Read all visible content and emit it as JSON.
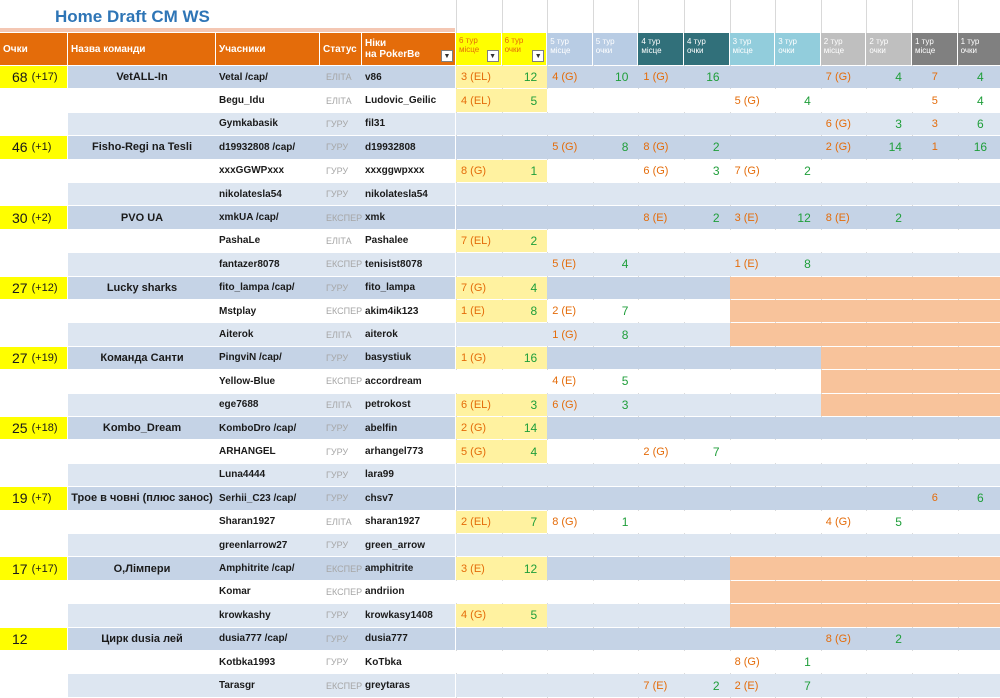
{
  "title": "Home Draft CM WS",
  "headers": {
    "points": "Очки",
    "team": "Назва команди",
    "members": "Учасники",
    "status": "Статус",
    "nick_line1": "Ніки",
    "nick_line2": "на PokerBe",
    "tours": [
      {
        "place": "6 тур місце",
        "points": "6 тур очки",
        "color": "#ffff00"
      },
      {
        "place": "5 тур місце",
        "points": "5 тур очки",
        "color": "#b8cce4"
      },
      {
        "place": "4 тур місце",
        "points": "4 тур очки",
        "color": "#31707a"
      },
      {
        "place": "3 тур місце",
        "points": "3 тур очки",
        "color": "#92cddc"
      },
      {
        "place": "2 тур місце",
        "points": "2 тур очки",
        "color": "#bfbfbf"
      },
      {
        "place": "1 тур місце",
        "points": "1 тур очки",
        "color": "#808080"
      }
    ]
  },
  "colors": {
    "band_dark": "#c5d3e6",
    "band_light": "#dde6f1",
    "band_white": "#ffffff",
    "tour6_fill": "#fff2a0",
    "peach": "#f8c39b",
    "place_text": "#e46c0a",
    "points_text": "#1f9e3a"
  },
  "rows": [
    {
      "team_points": "68",
      "team_delta": "(+17)",
      "team": "VetALL-In",
      "member": "Vetal /cap/",
      "status": "ЕЛІТА",
      "nick": "v86",
      "band": "dark",
      "tours": [
        [
          "3 (EL)",
          "12"
        ],
        [
          "4 (G)",
          "10"
        ],
        [
          "1 (G)",
          "16"
        ],
        [
          "",
          ""
        ],
        [
          "7 (G)",
          "4"
        ],
        [
          "7",
          "4"
        ]
      ]
    },
    {
      "member": "Begu_Idu",
      "status": "ЕЛІТА",
      "nick": "Ludovic_Geilic",
      "band": "white",
      "tours": [
        [
          "4 (EL)",
          "5"
        ],
        [
          "",
          ""
        ],
        [
          "",
          ""
        ],
        [
          "5 (G)",
          "4"
        ],
        [
          "",
          ""
        ],
        [
          "5",
          "4"
        ]
      ]
    },
    {
      "member": "Gymkabasik",
      "status": "ГУРУ",
      "nick": "fil31",
      "band": "light",
      "tours": [
        [
          "",
          ""
        ],
        [
          "",
          ""
        ],
        [
          "",
          ""
        ],
        [
          "",
          ""
        ],
        [
          "6 (G)",
          "3"
        ],
        [
          "3",
          "6"
        ]
      ]
    },
    {
      "team_points": "46",
      "team_delta": "(+1)",
      "team": "Fisho-Regi na Tesli",
      "member": "d19932808 /cap/",
      "status": "ГУРУ",
      "nick": "d19932808",
      "band": "dark",
      "tours": [
        [
          "",
          ""
        ],
        [
          "5 (G)",
          "8"
        ],
        [
          "8 (G)",
          "2"
        ],
        [
          "",
          ""
        ],
        [
          "2 (G)",
          "14"
        ],
        [
          "1",
          "16"
        ]
      ]
    },
    {
      "member": "xxxGGWPxxx",
      "status": "ГУРУ",
      "nick": "xxxggwpxxx",
      "band": "white",
      "tours": [
        [
          "8 (G)",
          "1"
        ],
        [
          "",
          ""
        ],
        [
          "6 (G)",
          "3"
        ],
        [
          "7 (G)",
          "2"
        ],
        [
          "",
          ""
        ],
        [
          "",
          ""
        ]
      ]
    },
    {
      "member": "nikolatesla54",
      "status": "ГУРУ",
      "nick": "nikolatesla54",
      "band": "light",
      "tours": [
        [
          "",
          ""
        ],
        [
          "",
          ""
        ],
        [
          "",
          ""
        ],
        [
          "",
          ""
        ],
        [
          "",
          ""
        ],
        [
          "",
          ""
        ]
      ]
    },
    {
      "team_points": "30",
      "team_delta": "(+2)",
      "team": "PVO UA",
      "member": "xmkUA /cap/",
      "status": "ЕКСПЕРТ",
      "nick": "xmk",
      "band": "dark",
      "tours": [
        [
          "",
          ""
        ],
        [
          "",
          ""
        ],
        [
          "8 (E)",
          "2"
        ],
        [
          "3 (E)",
          "12"
        ],
        [
          "8 (E)",
          "2"
        ],
        [
          "",
          ""
        ]
      ]
    },
    {
      "member": "PashaLe",
      "status": "ЕЛІТА",
      "nick": "Pashalee",
      "band": "white",
      "tours": [
        [
          "7 (EL)",
          "2"
        ],
        [
          "",
          ""
        ],
        [
          "",
          ""
        ],
        [
          "",
          ""
        ],
        [
          "",
          ""
        ],
        [
          "",
          ""
        ]
      ]
    },
    {
      "member": "fantazer8078",
      "status": "ЕКСПЕРТ",
      "nick": "tenisist8078",
      "band": "light",
      "tours": [
        [
          "",
          ""
        ],
        [
          "5 (E)",
          "4"
        ],
        [
          "",
          ""
        ],
        [
          "1 (E)",
          "8"
        ],
        [
          "",
          ""
        ],
        [
          "",
          ""
        ]
      ]
    },
    {
      "team_points": "27",
      "team_delta": "(+12)",
      "team": "Lucky sharks",
      "member": "fito_lampa /cap/",
      "status": "ГУРУ",
      "nick": "fito_lampa",
      "band": "dark",
      "peach": true,
      "tours": [
        [
          "7 (G)",
          "4"
        ],
        [
          "",
          ""
        ],
        [
          "",
          ""
        ],
        [
          "",
          ""
        ],
        [
          "",
          ""
        ],
        [
          "",
          ""
        ]
      ]
    },
    {
      "member": "Mstplay",
      "status": "ЕКСПЕРТ",
      "nick": "akim4ik123",
      "band": "white",
      "peach": true,
      "tours": [
        [
          "1 (E)",
          "8"
        ],
        [
          "2 (E)",
          "7"
        ],
        [
          "",
          ""
        ],
        [
          "",
          ""
        ],
        [
          "",
          ""
        ],
        [
          "",
          ""
        ]
      ]
    },
    {
      "member": "Aiterok",
      "status": "ЕЛІТА",
      "nick": "aiterok",
      "band": "light",
      "peach": true,
      "tours": [
        [
          "",
          ""
        ],
        [
          "1 (G)",
          "8"
        ],
        [
          "",
          ""
        ],
        [
          "",
          ""
        ],
        [
          "",
          ""
        ],
        [
          "",
          ""
        ]
      ]
    },
    {
      "team_points": "27",
      "team_delta": "(+19)",
      "team": "Команда Санти",
      "member": "PingviN /cap/",
      "status": "ГУРУ",
      "nick": "basystiuk",
      "band": "dark",
      "peach1": true,
      "tours": [
        [
          "1 (G)",
          "16"
        ],
        [
          "",
          ""
        ],
        [
          "",
          ""
        ],
        [
          "",
          ""
        ],
        [
          "",
          ""
        ],
        [
          "",
          ""
        ]
      ]
    },
    {
      "member": "Yellow-Blue",
      "status": "ЕКСПЕРТ",
      "nick": "accordream",
      "band": "white",
      "peach1": true,
      "tours": [
        [
          "",
          ""
        ],
        [
          "4 (E)",
          "5"
        ],
        [
          "",
          ""
        ],
        [
          "",
          ""
        ],
        [
          "",
          ""
        ],
        [
          "",
          ""
        ]
      ]
    },
    {
      "member": "ege7688",
      "status": "ЕЛІТА",
      "nick": "petrokost",
      "band": "light",
      "peach1": true,
      "tours": [
        [
          "6 (EL)",
          "3"
        ],
        [
          "6 (G)",
          "3"
        ],
        [
          "",
          ""
        ],
        [
          "",
          ""
        ],
        [
          "",
          ""
        ],
        [
          "",
          ""
        ]
      ]
    },
    {
      "team_points": "25",
      "team_delta": "(+18)",
      "team": "Kombo_Dream",
      "member": "KomboDro /cap/",
      "status": "ГУРУ",
      "nick": "abelfin",
      "band": "dark",
      "tours": [
        [
          "2 (G)",
          "14"
        ],
        [
          "",
          ""
        ],
        [
          "",
          ""
        ],
        [
          "",
          ""
        ],
        [
          "",
          ""
        ],
        [
          "",
          ""
        ]
      ]
    },
    {
      "member": "ARHANGEL",
      "status": "ГУРУ",
      "nick": "arhangel773",
      "band": "white",
      "tours": [
        [
          "5 (G)",
          "4"
        ],
        [
          "",
          ""
        ],
        [
          "2 (G)",
          "7"
        ],
        [
          "",
          ""
        ],
        [
          "",
          ""
        ],
        [
          "",
          ""
        ]
      ]
    },
    {
      "member": "Luna4444",
      "status": "ГУРУ",
      "nick": "lara99",
      "band": "light",
      "tours": [
        [
          "",
          ""
        ],
        [
          "",
          ""
        ],
        [
          "",
          ""
        ],
        [
          "",
          ""
        ],
        [
          "",
          ""
        ],
        [
          "",
          ""
        ]
      ]
    },
    {
      "team_points": "19",
      "team_delta": "(+7)",
      "team": "Трое в човні (плюс занос)",
      "member": "Serhii_C23 /cap/",
      "status": "ГУРУ",
      "nick": "chsv7",
      "band": "dark",
      "tours": [
        [
          "",
          ""
        ],
        [
          "",
          ""
        ],
        [
          "",
          ""
        ],
        [
          "",
          ""
        ],
        [
          "",
          ""
        ],
        [
          "6",
          "6"
        ]
      ]
    },
    {
      "member": "Sharan1927",
      "status": "ЕЛІТА",
      "nick": "sharan1927",
      "band": "white",
      "tours": [
        [
          "2 (EL)",
          "7"
        ],
        [
          "8 (G)",
          "1"
        ],
        [
          "",
          ""
        ],
        [
          "",
          ""
        ],
        [
          "4 (G)",
          "5"
        ],
        [
          "",
          ""
        ]
      ]
    },
    {
      "member": "greenlarrow27",
      "status": "ГУРУ",
      "nick": "green_arrow",
      "band": "light",
      "tours": [
        [
          "",
          ""
        ],
        [
          "",
          ""
        ],
        [
          "",
          ""
        ],
        [
          "",
          ""
        ],
        [
          "",
          ""
        ],
        [
          "",
          ""
        ]
      ]
    },
    {
      "team_points": "17",
      "team_delta": "(+17)",
      "team": "О,Лімпери",
      "member": "Amphitrite /cap/",
      "status": "ЕКСПЕРТ",
      "nick": "amphitrite",
      "band": "dark",
      "peach": true,
      "tours": [
        [
          "3 (E)",
          "12"
        ],
        [
          "",
          ""
        ],
        [
          "",
          ""
        ],
        [
          "",
          ""
        ],
        [
          "",
          ""
        ],
        [
          "",
          ""
        ]
      ]
    },
    {
      "member": "Komar",
      "status": "ЕКСПЕРТ",
      "nick": "andriion",
      "band": "white",
      "peach": true,
      "tours": [
        [
          "",
          ""
        ],
        [
          "",
          ""
        ],
        [
          "",
          ""
        ],
        [
          "",
          ""
        ],
        [
          "",
          ""
        ],
        [
          "",
          ""
        ]
      ]
    },
    {
      "member": "krowkashy",
      "status": "ГУРУ",
      "nick": "krowkasy1408",
      "band": "light",
      "peach": true,
      "tours": [
        [
          "4 (G)",
          "5"
        ],
        [
          "",
          ""
        ],
        [
          "",
          ""
        ],
        [
          "",
          ""
        ],
        [
          "",
          ""
        ],
        [
          "",
          ""
        ]
      ]
    },
    {
      "team_points": "12",
      "team_delta": "",
      "team": "Цирк dusia лей",
      "member": "dusia777 /cap/",
      "status": "ГУРУ",
      "nick": "dusia777",
      "band": "dark",
      "tours": [
        [
          "",
          ""
        ],
        [
          "",
          ""
        ],
        [
          "",
          ""
        ],
        [
          "",
          ""
        ],
        [
          "8 (G)",
          "2"
        ],
        [
          "",
          ""
        ]
      ]
    },
    {
      "member": "Kotbka1993",
      "status": "ГУРУ",
      "nick": "KoTbka",
      "band": "white",
      "tours": [
        [
          "",
          ""
        ],
        [
          "",
          ""
        ],
        [
          "",
          ""
        ],
        [
          "8 (G)",
          "1"
        ],
        [
          "",
          ""
        ],
        [
          "",
          ""
        ]
      ]
    },
    {
      "member": "Tarasgr",
      "status": "ЕКСПЕРТ",
      "nick": "greytaras",
      "band": "light",
      "tours": [
        [
          "",
          ""
        ],
        [
          "",
          ""
        ],
        [
          "7 (E)",
          "2"
        ],
        [
          "2 (E)",
          "7"
        ],
        [
          "",
          ""
        ],
        [
          "",
          ""
        ]
      ]
    }
  ]
}
